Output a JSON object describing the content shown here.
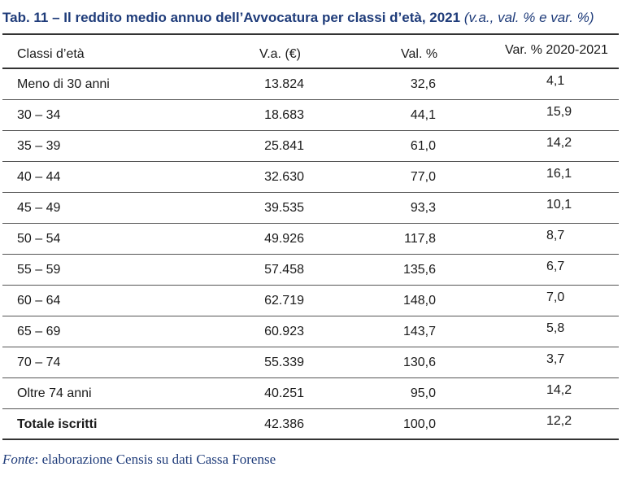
{
  "title": {
    "main": "Tab. 11 – Il reddito medio annuo dell’Avvocatura per classi d’età, 2021",
    "sub": "(v.a., val. % e var. %)"
  },
  "table": {
    "headers": [
      "Classi d’età",
      "V.a. (€)",
      "Val. %",
      "Var. % 2020-2021"
    ],
    "rows": [
      [
        "Meno di 30 anni",
        "13.824",
        "32,6",
        "4,1"
      ],
      [
        "30 – 34",
        "18.683",
        "44,1",
        "15,9"
      ],
      [
        "35 – 39",
        "25.841",
        "61,0",
        "14,2"
      ],
      [
        "40 – 44",
        "32.630",
        "77,0",
        "16,1"
      ],
      [
        "45 – 49",
        "39.535",
        "93,3",
        "10,1"
      ],
      [
        "50 – 54",
        "49.926",
        "117,8",
        "8,7"
      ],
      [
        "55 – 59",
        "57.458",
        "135,6",
        "6,7"
      ],
      [
        "60 – 64",
        "62.719",
        "148,0",
        "7,0"
      ],
      [
        "65 – 69",
        "60.923",
        "143,7",
        "5,8"
      ],
      [
        "70 – 74",
        "55.339",
        "130,6",
        "3,7"
      ],
      [
        "Oltre 74 anni",
        "40.251",
        "95,0",
        "14,2"
      ],
      [
        "Totale iscritti",
        "42.386",
        "100,0",
        "12,2"
      ]
    ]
  },
  "source": {
    "label": "Fonte",
    "text": ": elaborazione Censis su dati Cassa Forense"
  }
}
